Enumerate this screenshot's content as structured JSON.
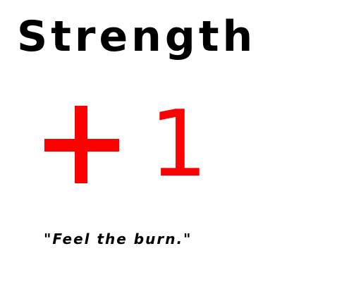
{
  "stat": {
    "name": "Strength",
    "sign": "+",
    "amount": "1",
    "flavor": "\"Feel the burn.\""
  },
  "colors": {
    "title": "#000000",
    "change": "#ff0000",
    "background": "#ffffff"
  },
  "icons": {
    "sign_icon": "plus-icon"
  }
}
